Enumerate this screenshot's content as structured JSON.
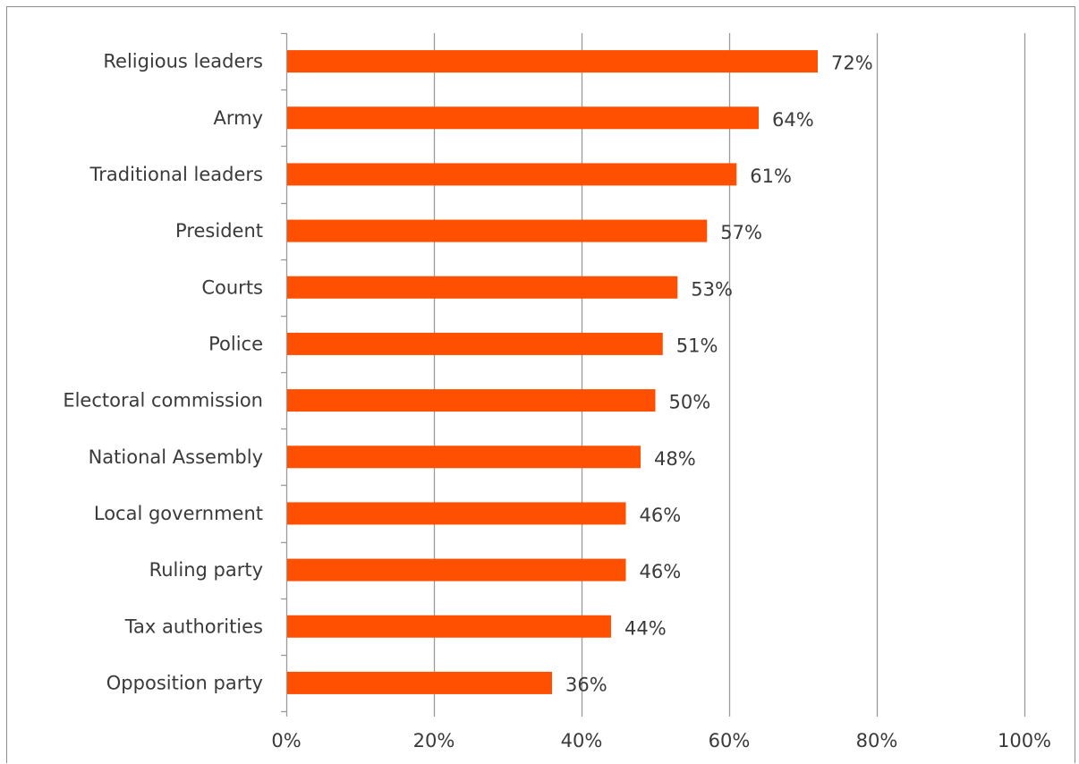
{
  "chart_data": {
    "type": "bar",
    "orientation": "horizontal",
    "title": "",
    "xlabel": "",
    "ylabel": "",
    "xlim": [
      0,
      100
    ],
    "x_ticks": [
      0,
      20,
      40,
      60,
      80,
      100
    ],
    "x_tick_labels": [
      "0%",
      "20%",
      "40%",
      "60%",
      "80%",
      "100%"
    ],
    "grid": "vertical",
    "legend": "none",
    "bar_color": "#ff4f00",
    "categories": [
      "Religious leaders",
      "Army",
      "Traditional leaders",
      "President",
      "Courts",
      "Police",
      "Electoral commission",
      "National Assembly",
      "Local government",
      "Ruling party",
      "Tax authorities",
      "Opposition party"
    ],
    "values": [
      72,
      64,
      61,
      57,
      53,
      51,
      50,
      48,
      46,
      46,
      44,
      36
    ],
    "value_labels": [
      "72%",
      "64%",
      "61%",
      "57%",
      "53%",
      "51%",
      "50%",
      "48%",
      "46%",
      "46%",
      "44%",
      "36%"
    ]
  }
}
